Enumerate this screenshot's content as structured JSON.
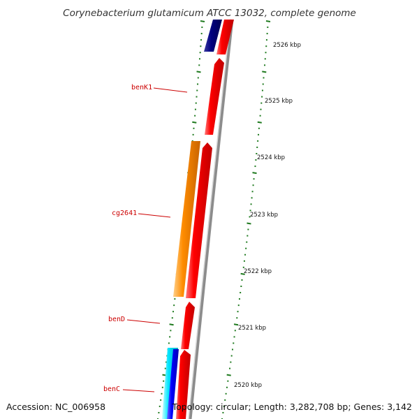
{
  "title": "Corynebacterium glutamicum ATCC 13032, complete genome",
  "footer": {
    "accession": "Accession: NC_006958",
    "summary": "Topology: circular; Length: 3,282,708 bp; Genes: 3,142"
  },
  "scale": {
    "ticks": [
      {
        "label": "2526 kbp"
      },
      {
        "label": "2525 kbp"
      },
      {
        "label": "2524 kbp"
      },
      {
        "label": "2523 kbp"
      },
      {
        "label": "2522 kbp"
      },
      {
        "label": "2521 kbp"
      },
      {
        "label": "2520 kbp"
      }
    ]
  },
  "genes": {
    "labels": [
      {
        "name": "benK1"
      },
      {
        "name": "cg2641"
      },
      {
        "name": "benD"
      },
      {
        "name": "benC"
      }
    ]
  },
  "colors": {
    "background": "#ffffff",
    "gene_red": "#ff0000",
    "gene_orange": "#ff8c00",
    "gene_navy": "#000080",
    "gene_blue": "#0000ff",
    "gene_cyan": "#00e5ff",
    "backbone_grey": "#8c8c8c",
    "tick_green": "#1f7a1f",
    "label_red": "#cc0000"
  }
}
